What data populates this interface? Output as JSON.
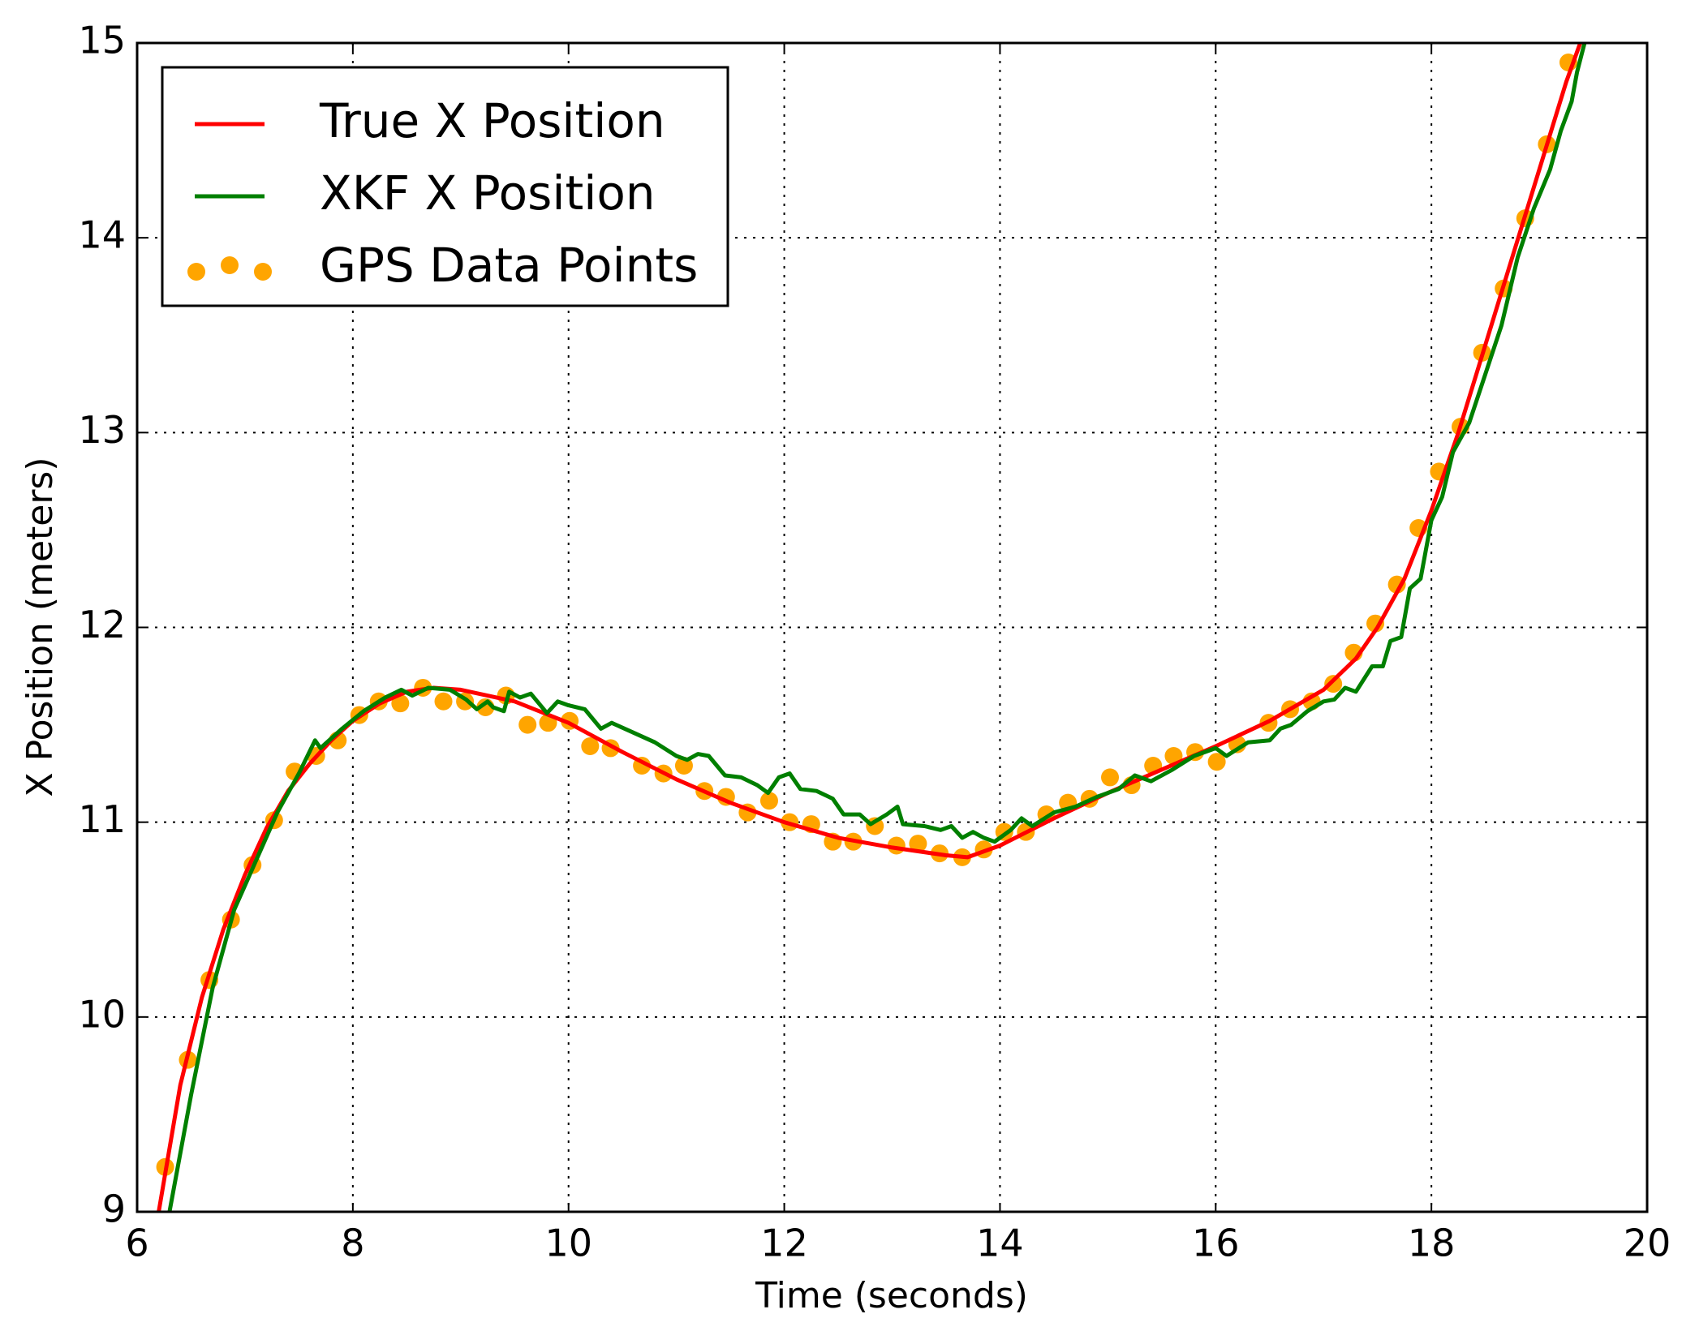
{
  "chart_data": {
    "type": "line",
    "xlabel": "Time (seconds)",
    "ylabel": "X Position (meters)",
    "xlim": [
      6,
      20
    ],
    "ylim": [
      9,
      15
    ],
    "xticks": [
      6,
      8,
      10,
      12,
      14,
      16,
      18,
      20
    ],
    "yticks": [
      9,
      10,
      11,
      12,
      13,
      14,
      15
    ],
    "grid": true,
    "legend": "upper-left",
    "series": [
      {
        "name": "True X Position",
        "type": "line",
        "color": "#ff0000",
        "x": [
          6.2,
          6.4,
          6.6,
          6.8,
          7.0,
          7.2,
          7.4,
          7.6,
          7.8,
          8.0,
          8.25,
          8.5,
          8.75,
          9.0,
          9.5,
          10.0,
          10.5,
          11.0,
          11.5,
          12.0,
          12.5,
          13.0,
          13.5,
          13.7,
          14.0,
          14.5,
          15.0,
          15.5,
          16.0,
          16.5,
          17.0,
          17.3,
          17.5,
          17.75,
          18.0,
          18.25,
          18.5,
          18.75,
          19.0,
          19.25,
          19.38
        ],
        "values": [
          9.0,
          9.65,
          10.1,
          10.45,
          10.73,
          10.97,
          11.16,
          11.3,
          11.42,
          11.52,
          11.61,
          11.67,
          11.69,
          11.68,
          11.62,
          11.51,
          11.36,
          11.22,
          11.1,
          11.0,
          10.92,
          10.87,
          10.83,
          10.82,
          10.88,
          11.02,
          11.15,
          11.27,
          11.39,
          11.52,
          11.68,
          11.84,
          12.0,
          12.25,
          12.6,
          13.0,
          13.45,
          13.9,
          14.35,
          14.8,
          15.0
        ]
      },
      {
        "name": "XKF X Position",
        "type": "line",
        "color": "#007f00",
        "x": [
          6.3,
          6.5,
          6.7,
          6.9,
          7.1,
          7.3,
          7.5,
          7.65,
          7.7,
          7.9,
          8.1,
          8.3,
          8.45,
          8.55,
          8.7,
          8.9,
          9.05,
          9.15,
          9.25,
          9.3,
          9.4,
          9.45,
          9.55,
          9.65,
          9.8,
          9.9,
          10.0,
          10.15,
          10.3,
          10.4,
          10.6,
          10.8,
          11.0,
          11.1,
          11.2,
          11.3,
          11.45,
          11.6,
          11.75,
          11.85,
          11.95,
          12.05,
          12.15,
          12.3,
          12.45,
          12.55,
          12.7,
          12.8,
          12.95,
          13.05,
          13.1,
          13.3,
          13.45,
          13.55,
          13.65,
          13.75,
          13.85,
          13.95,
          14.1,
          14.2,
          14.3,
          14.5,
          14.7,
          14.9,
          15.1,
          15.25,
          15.4,
          15.6,
          15.8,
          16.0,
          16.1,
          16.3,
          16.5,
          16.6,
          16.7,
          16.85,
          17.0,
          17.1,
          17.2,
          17.3,
          17.45,
          17.55,
          17.62,
          17.72,
          17.8,
          17.9,
          18.0,
          18.1,
          18.2,
          18.35,
          18.5,
          18.65,
          18.8,
          18.95,
          19.1,
          19.2,
          19.3,
          19.35,
          19.42
        ],
        "values": [
          9.0,
          9.6,
          10.15,
          10.55,
          10.8,
          11.05,
          11.25,
          11.42,
          11.38,
          11.48,
          11.57,
          11.64,
          11.68,
          11.65,
          11.69,
          11.68,
          11.63,
          11.58,
          11.62,
          11.59,
          11.57,
          11.67,
          11.64,
          11.66,
          11.56,
          11.62,
          11.6,
          11.58,
          11.48,
          11.51,
          11.46,
          11.41,
          11.34,
          11.32,
          11.35,
          11.34,
          11.24,
          11.23,
          11.19,
          11.15,
          11.23,
          11.25,
          11.17,
          11.16,
          11.12,
          11.04,
          11.04,
          10.99,
          11.04,
          11.08,
          10.99,
          10.98,
          10.96,
          10.98,
          10.92,
          10.95,
          10.92,
          10.9,
          10.96,
          11.02,
          10.98,
          11.05,
          11.08,
          11.13,
          11.17,
          11.24,
          11.21,
          11.27,
          11.34,
          11.38,
          11.34,
          11.41,
          11.42,
          11.48,
          11.5,
          11.57,
          11.62,
          11.63,
          11.69,
          11.67,
          11.8,
          11.8,
          11.93,
          11.95,
          12.2,
          12.25,
          12.55,
          12.67,
          12.9,
          13.05,
          13.3,
          13.55,
          13.9,
          14.15,
          14.35,
          14.55,
          14.7,
          14.85,
          15.0
        ]
      },
      {
        "name": "GPS Data Points",
        "type": "scatter",
        "color": "#ffa500",
        "x": [
          6.26,
          6.47,
          6.67,
          6.87,
          7.07,
          7.27,
          7.46,
          7.66,
          7.86,
          8.06,
          8.24,
          8.44,
          8.65,
          8.84,
          9.04,
          9.23,
          9.42,
          9.62,
          9.81,
          10.01,
          10.2,
          10.39,
          10.68,
          10.88,
          11.07,
          11.26,
          11.46,
          11.66,
          11.86,
          12.05,
          12.25,
          12.45,
          12.64,
          12.84,
          13.04,
          13.24,
          13.44,
          13.65,
          13.85,
          14.04,
          14.24,
          14.43,
          14.63,
          14.83,
          15.02,
          15.22,
          15.42,
          15.61,
          15.81,
          16.01,
          16.2,
          16.49,
          16.69,
          16.89,
          17.09,
          17.28,
          17.48,
          17.68,
          17.88,
          18.07,
          18.27,
          18.47,
          18.67,
          18.87,
          19.07,
          19.27
        ],
        "values": [
          9.23,
          9.78,
          10.19,
          10.5,
          10.78,
          11.01,
          11.26,
          11.34,
          11.42,
          11.55,
          11.62,
          11.61,
          11.69,
          11.62,
          11.62,
          11.59,
          11.65,
          11.5,
          11.51,
          11.52,
          11.39,
          11.38,
          11.29,
          11.25,
          11.29,
          11.16,
          11.13,
          11.05,
          11.11,
          11.0,
          10.99,
          10.9,
          10.9,
          10.98,
          10.88,
          10.89,
          10.84,
          10.82,
          10.86,
          10.95,
          10.95,
          11.04,
          11.1,
          11.12,
          11.23,
          11.19,
          11.29,
          11.34,
          11.36,
          11.31,
          11.4,
          11.51,
          11.58,
          11.62,
          11.71,
          11.87,
          12.02,
          12.22,
          12.51,
          12.8,
          13.03,
          13.41,
          13.74,
          14.1,
          14.48,
          14.9
        ]
      }
    ]
  }
}
